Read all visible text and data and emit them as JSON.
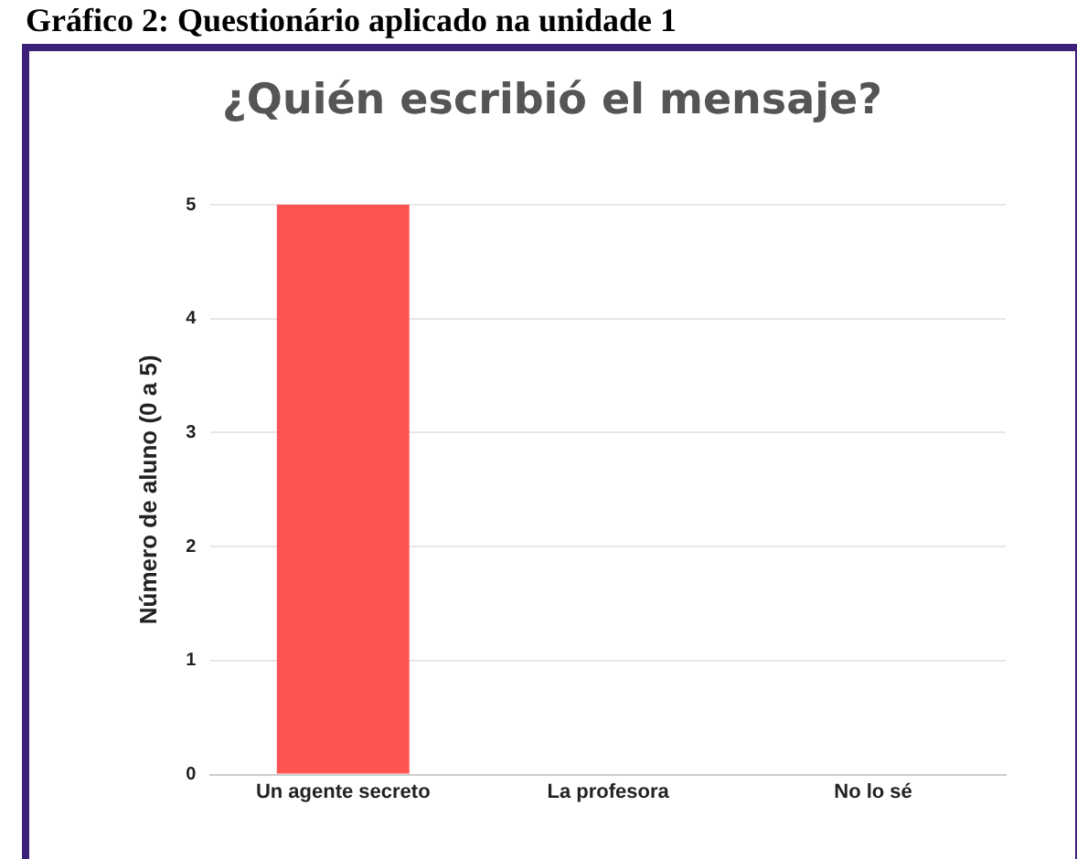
{
  "chart_data": {
    "type": "bar",
    "title": "¿Quién escribió el mensaje?",
    "annotations": [
      "Gráfico 2: Questionário aplicado na unidade 1"
    ],
    "ylabel": "Número de aluno (0 a 5)",
    "categories": [
      "Un agente secreto",
      "La profesora",
      "No lo sé"
    ],
    "values": [
      5,
      0,
      0
    ],
    "color": "#ff5353",
    "ylim": [
      0,
      5
    ],
    "yticks": [
      0,
      1,
      2,
      3,
      4,
      5
    ],
    "grid": "y",
    "legend": false
  }
}
